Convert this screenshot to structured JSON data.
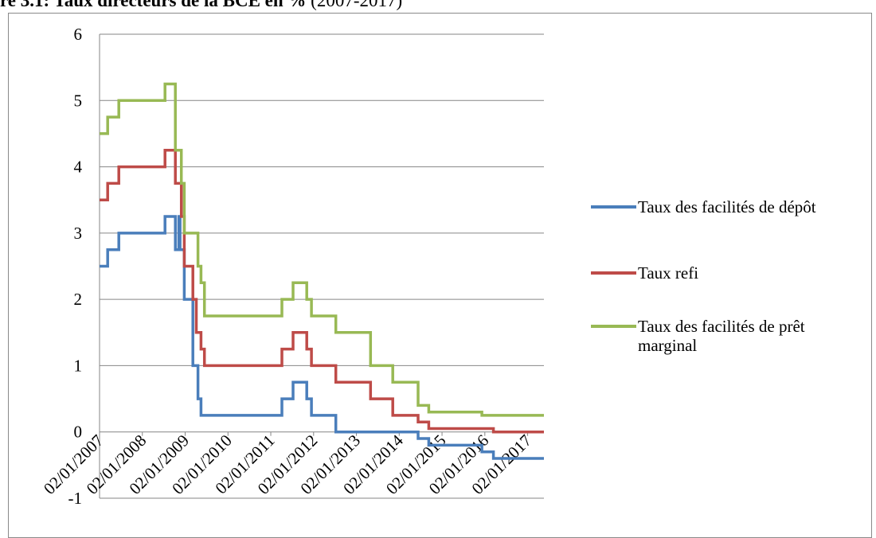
{
  "chart_data": {
    "type": "line",
    "title_bold": "re 3.1: Taux directeurs de la BCE en %",
    "title_rest": " (2007-2017)",
    "xlabel": "",
    "ylabel": "",
    "ylim": [
      -1,
      6
    ],
    "yticks": [
      -1,
      0,
      1,
      2,
      3,
      4,
      5,
      6
    ],
    "xlim": [
      2007.0,
      2017.38
    ],
    "xticks": [
      {
        "value": 2007.0,
        "label": "02/01/2007"
      },
      {
        "value": 2008.0,
        "label": "02/01/2008"
      },
      {
        "value": 2009.0,
        "label": "02/01/2009"
      },
      {
        "value": 2010.0,
        "label": "02/01/2010"
      },
      {
        "value": 2011.0,
        "label": "02/01/2011"
      },
      {
        "value": 2012.0,
        "label": "02/01/2012"
      },
      {
        "value": 2013.0,
        "label": "02/01/2013"
      },
      {
        "value": 2014.0,
        "label": "02/01/2014"
      },
      {
        "value": 2015.0,
        "label": "02/01/2015"
      },
      {
        "value": 2016.0,
        "label": "02/01/2016"
      },
      {
        "value": 2017.0,
        "label": "02/01/2017"
      }
    ],
    "grid": "horizontal",
    "legend_position": "right",
    "series": [
      {
        "name": "Taux des facilités de dépôt",
        "color": "#4a7ebb",
        "points": [
          [
            2007.0,
            2.5
          ],
          [
            2007.19,
            2.75
          ],
          [
            2007.45,
            3.0
          ],
          [
            2008.53,
            3.25
          ],
          [
            2008.77,
            2.75
          ],
          [
            2008.85,
            3.25
          ],
          [
            2008.88,
            2.75
          ],
          [
            2008.98,
            2.0
          ],
          [
            2009.18,
            1.0
          ],
          [
            2009.3,
            0.5
          ],
          [
            2009.37,
            0.25
          ],
          [
            2011.26,
            0.5
          ],
          [
            2011.52,
            0.75
          ],
          [
            2011.84,
            0.5
          ],
          [
            2011.95,
            0.25
          ],
          [
            2012.52,
            0.0
          ],
          [
            2014.44,
            -0.1
          ],
          [
            2014.69,
            -0.2
          ],
          [
            2015.93,
            -0.3
          ],
          [
            2016.2,
            -0.4
          ],
          [
            2017.38,
            -0.4
          ]
        ]
      },
      {
        "name": "Taux refi",
        "color": "#be4b48",
        "points": [
          [
            2007.0,
            3.5
          ],
          [
            2007.19,
            3.75
          ],
          [
            2007.45,
            4.0
          ],
          [
            2008.53,
            4.25
          ],
          [
            2008.77,
            3.75
          ],
          [
            2008.91,
            3.25
          ],
          [
            2008.98,
            2.5
          ],
          [
            2009.18,
            2.0
          ],
          [
            2009.26,
            1.5
          ],
          [
            2009.37,
            1.25
          ],
          [
            2009.45,
            1.0
          ],
          [
            2011.26,
            1.25
          ],
          [
            2011.52,
            1.5
          ],
          [
            2011.84,
            1.25
          ],
          [
            2011.95,
            1.0
          ],
          [
            2012.52,
            0.75
          ],
          [
            2013.33,
            0.5
          ],
          [
            2013.85,
            0.25
          ],
          [
            2014.44,
            0.15
          ],
          [
            2014.69,
            0.05
          ],
          [
            2016.2,
            0.0
          ],
          [
            2017.38,
            0.0
          ]
        ]
      },
      {
        "name": "Taux des facilités de prêt marginal",
        "color": "#98b954",
        "points": [
          [
            2007.0,
            4.5
          ],
          [
            2007.19,
            4.75
          ],
          [
            2007.45,
            5.0
          ],
          [
            2008.53,
            5.25
          ],
          [
            2008.77,
            4.25
          ],
          [
            2008.91,
            3.75
          ],
          [
            2008.98,
            3.0
          ],
          [
            2009.3,
            2.5
          ],
          [
            2009.37,
            2.25
          ],
          [
            2009.45,
            1.75
          ],
          [
            2011.26,
            2.0
          ],
          [
            2011.52,
            2.25
          ],
          [
            2011.84,
            2.0
          ],
          [
            2011.95,
            1.75
          ],
          [
            2012.52,
            1.5
          ],
          [
            2013.33,
            1.0
          ],
          [
            2013.85,
            0.75
          ],
          [
            2014.44,
            0.4
          ],
          [
            2014.69,
            0.3
          ],
          [
            2015.93,
            0.25
          ],
          [
            2017.38,
            0.25
          ]
        ]
      }
    ]
  }
}
